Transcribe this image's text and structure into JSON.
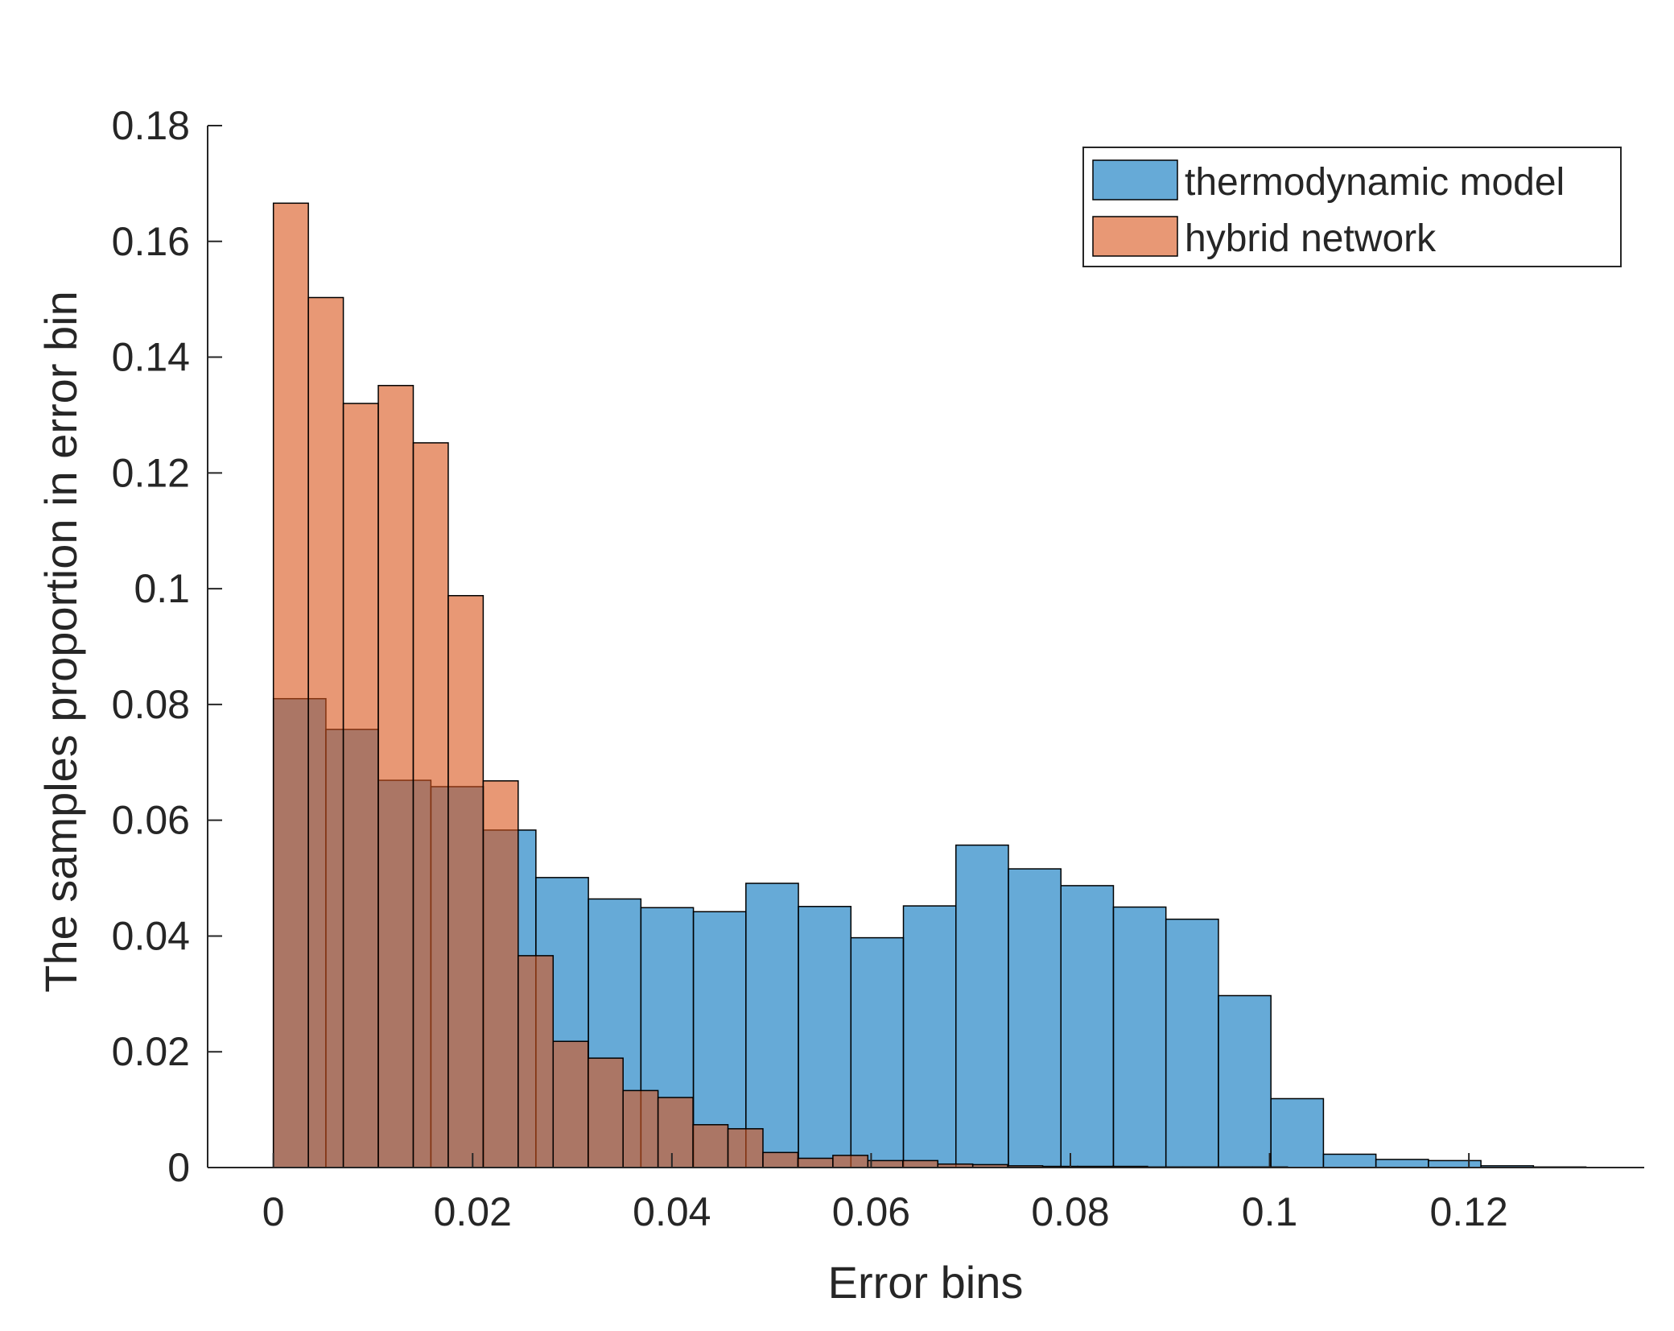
{
  "chart_data": {
    "type": "bar",
    "title": "",
    "xlabel": "Error bins",
    "ylabel": "The samples proportion in error bin",
    "xlim": [
      -0.0066,
      0.1376
    ],
    "ylim": [
      0,
      0.18
    ],
    "xticks": [
      0,
      0.02,
      0.04,
      0.06,
      0.08,
      0.1,
      0.12
    ],
    "xtick_labels": [
      "0",
      "0.02",
      "0.04",
      "0.06",
      "0.08",
      "0.1",
      "0.12"
    ],
    "yticks": [
      0,
      0.02,
      0.04,
      0.06,
      0.08,
      0.1,
      0.12,
      0.14,
      0.16,
      0.18
    ],
    "ytick_labels": [
      "0",
      "0.02",
      "0.04",
      "0.06",
      "0.08",
      "0.1",
      "0.12",
      "0.14",
      "0.16",
      "0.18"
    ],
    "legend_position": "top-right",
    "series": [
      {
        "name": "thermodynamic model",
        "color": "#0072BD",
        "opacity": 0.6,
        "bin_start": 0,
        "bin_width": 0.00527,
        "values": [
          0.081,
          0.0757,
          0.0669,
          0.0658,
          0.0583,
          0.0501,
          0.0464,
          0.0449,
          0.0442,
          0.0491,
          0.0451,
          0.0397,
          0.0452,
          0.0557,
          0.0516,
          0.0487,
          0.045,
          0.0429,
          0.0297,
          0.0119,
          0.0023,
          0.0014,
          0.0012,
          0.0003,
          0.0001
        ]
      },
      {
        "name": "hybrid network",
        "color": "#D95319",
        "opacity": 0.6,
        "bin_start": 0,
        "bin_width": 0.00351,
        "values": [
          0.1666,
          0.1503,
          0.132,
          0.1351,
          0.1252,
          0.0988,
          0.0668,
          0.0366,
          0.0218,
          0.0189,
          0.0133,
          0.0121,
          0.0074,
          0.0067,
          0.0026,
          0.0016,
          0.0021,
          0.0012,
          0.0012,
          0.0006,
          0.0005,
          0.0003,
          0.0002,
          0.0002,
          0.0002,
          0.0001,
          0.0001,
          0.0001,
          0.0001
        ]
      }
    ]
  }
}
